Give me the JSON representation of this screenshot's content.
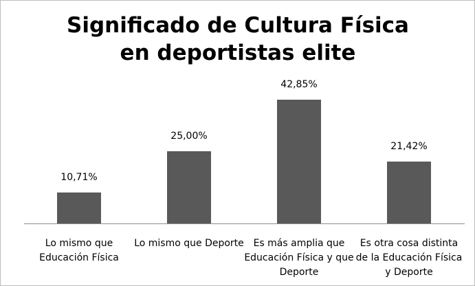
{
  "chart_data": {
    "type": "bar",
    "title": "Significado de Cultura Física en deportistas elite",
    "categories": [
      "Lo mismo que Educación Física",
      "Lo mismo que Deporte",
      "Es más amplia que Educación Física y que Deporte",
      "Es otra cosa distinta de la Educación Física y Deporte"
    ],
    "values": [
      10.71,
      25,
      42.85,
      21.42
    ],
    "value_labels": [
      "10,71%",
      "25,00%",
      "42,85%",
      "21,42%"
    ],
    "color": "#595959"
  }
}
